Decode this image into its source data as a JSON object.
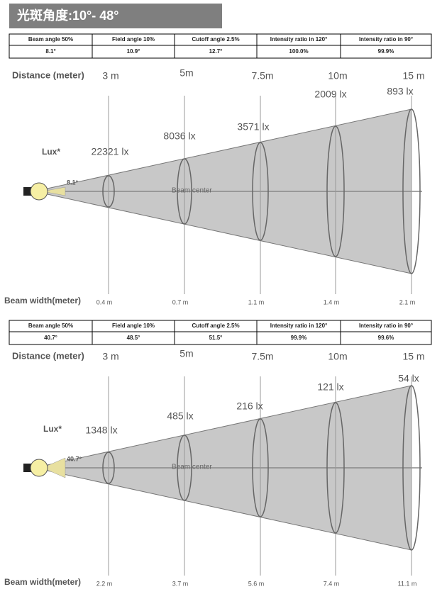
{
  "title": "光斑角度:10°- 48°",
  "sections": [
    {
      "table": {
        "headers": [
          "Beam angle 50%",
          "Field angle 10%",
          "Cutoff angle 2.5%",
          "Intensity ratio in 120°",
          "Intensity ratio in 90°"
        ],
        "values": [
          "8.1°",
          "10.9°",
          "12.7°",
          "100.0%",
          "99.9%"
        ]
      },
      "distance_label": "Distance (meter)",
      "distances": [
        "3 m",
        "5m",
        "7.5m",
        "10m",
        "15 m"
      ],
      "lux_label": "Lux*",
      "lux": [
        "22321 lx",
        "8036 lx",
        "3571 lx",
        "2009 lx",
        "893 lx"
      ],
      "angle": "8.1°",
      "beam_center": "Beam center",
      "beam_width_label": "Beam width(meter)",
      "beam_widths": [
        "0.4 m",
        "0.7 m",
        "1.1 m",
        "1.4 m",
        "2.1 m"
      ]
    },
    {
      "table": {
        "headers": [
          "Beam angle 50%",
          "Field angle 10%",
          "Cutoff angle 2.5%",
          "Intensity ratio in 120°",
          "Intensity ratio in 90°"
        ],
        "values": [
          "40.7°",
          "48.5°",
          "51.5°",
          "99.9%",
          "99.6%"
        ]
      },
      "distance_label": "Distance (meter)",
      "distances": [
        "3 m",
        "5m",
        "7.5m",
        "10m",
        "15 m"
      ],
      "lux_label": "Lux*",
      "lux": [
        "1348 lx",
        "485 lx",
        "216 lx",
        "121 lx",
        "54 lx"
      ],
      "angle": "40.7°",
      "beam_center": "Beam center",
      "beam_width_label": "Beam width(meter)",
      "beam_widths": [
        "2.2 m",
        "3.7 m",
        "5.6 m",
        "7.4 m",
        "11.1 m"
      ]
    }
  ]
}
